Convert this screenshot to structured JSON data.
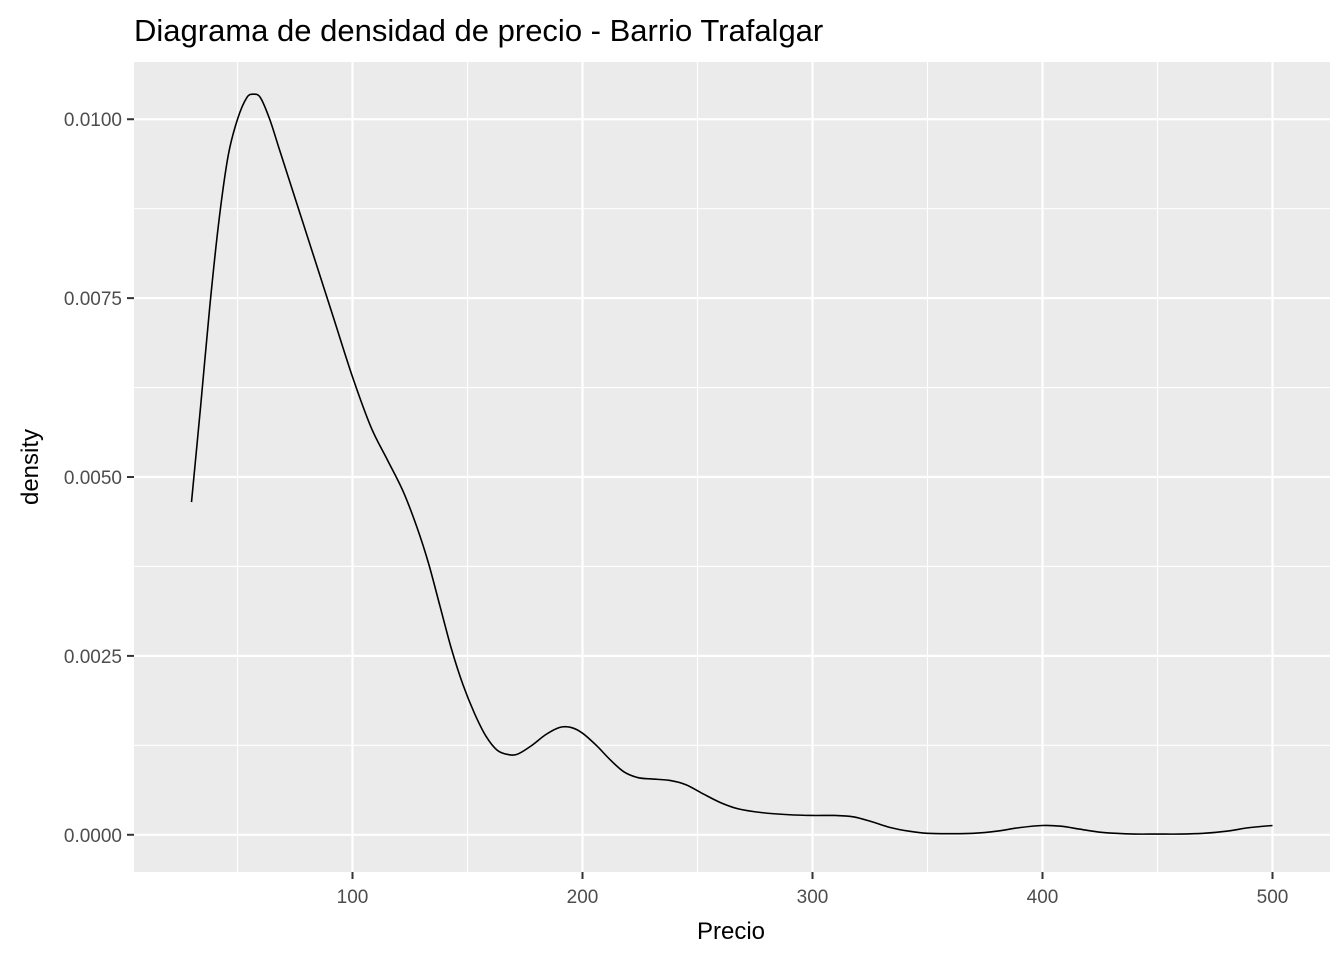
{
  "chart_data": {
    "type": "line",
    "title": "Diagrama de densidad de precio - Barrio Trafalgar",
    "xlabel": "Precio",
    "ylabel": "density",
    "xlim": [
      5,
      525
    ],
    "ylim": [
      -0.00052,
      0.0108
    ],
    "x_ticks": [
      100,
      200,
      300,
      400,
      500
    ],
    "x_tick_labels": [
      "100",
      "200",
      "300",
      "400",
      "500"
    ],
    "x_minor_ticks": [
      50,
      150,
      250,
      350,
      450
    ],
    "y_ticks": [
      0,
      0.0025,
      0.005,
      0.0075,
      0.01
    ],
    "y_tick_labels": [
      "0.0000",
      "0.0025",
      "0.0050",
      "0.0075",
      "0.0100"
    ],
    "y_minor_ticks": [
      0.00125,
      0.00375,
      0.00625,
      0.00875
    ],
    "grid": true,
    "legend": "none",
    "colors": {
      "panel": "#ebebeb",
      "grid": "#ffffff",
      "line": "#000000"
    },
    "series": [
      {
        "x": [
          30,
          34,
          38,
          42,
          46,
          50,
          54,
          57,
          60,
          64,
          68,
          72,
          78,
          85,
          92,
          100,
          108,
          115,
          122,
          128,
          133,
          138,
          143,
          148,
          153,
          158,
          163,
          168,
          172,
          178,
          184,
          190,
          195,
          200,
          206,
          212,
          218,
          224,
          230,
          238,
          245,
          252,
          260,
          268,
          278,
          290,
          300,
          310,
          318,
          326,
          334,
          342,
          350,
          360,
          370,
          380,
          390,
          400,
          408,
          416,
          424,
          432,
          440,
          450,
          460,
          470,
          480,
          490,
          500
        ],
        "y": [
          0.00465,
          0.006,
          0.0074,
          0.0086,
          0.0095,
          0.01,
          0.0103,
          0.01035,
          0.0103,
          0.01,
          0.0096,
          0.0092,
          0.0086,
          0.0079,
          0.0072,
          0.0064,
          0.0057,
          0.00525,
          0.0048,
          0.0043,
          0.0038,
          0.0032,
          0.0026,
          0.0021,
          0.0017,
          0.00138,
          0.00118,
          0.00112,
          0.00113,
          0.00125,
          0.0014,
          0.0015,
          0.0015,
          0.00142,
          0.00125,
          0.00105,
          0.00088,
          0.0008,
          0.00078,
          0.00076,
          0.0007,
          0.00058,
          0.00045,
          0.00036,
          0.00031,
          0.00028,
          0.00027,
          0.00027,
          0.00025,
          0.00018,
          0.0001,
          5e-05,
          2e-05,
          1.5e-05,
          2e-05,
          5e-05,
          0.0001,
          0.00013,
          0.00012,
          8e-05,
          4e-05,
          2e-05,
          1e-05,
          1e-05,
          1e-05,
          2e-05,
          5e-05,
          0.0001,
          0.00013
        ]
      }
    ]
  }
}
